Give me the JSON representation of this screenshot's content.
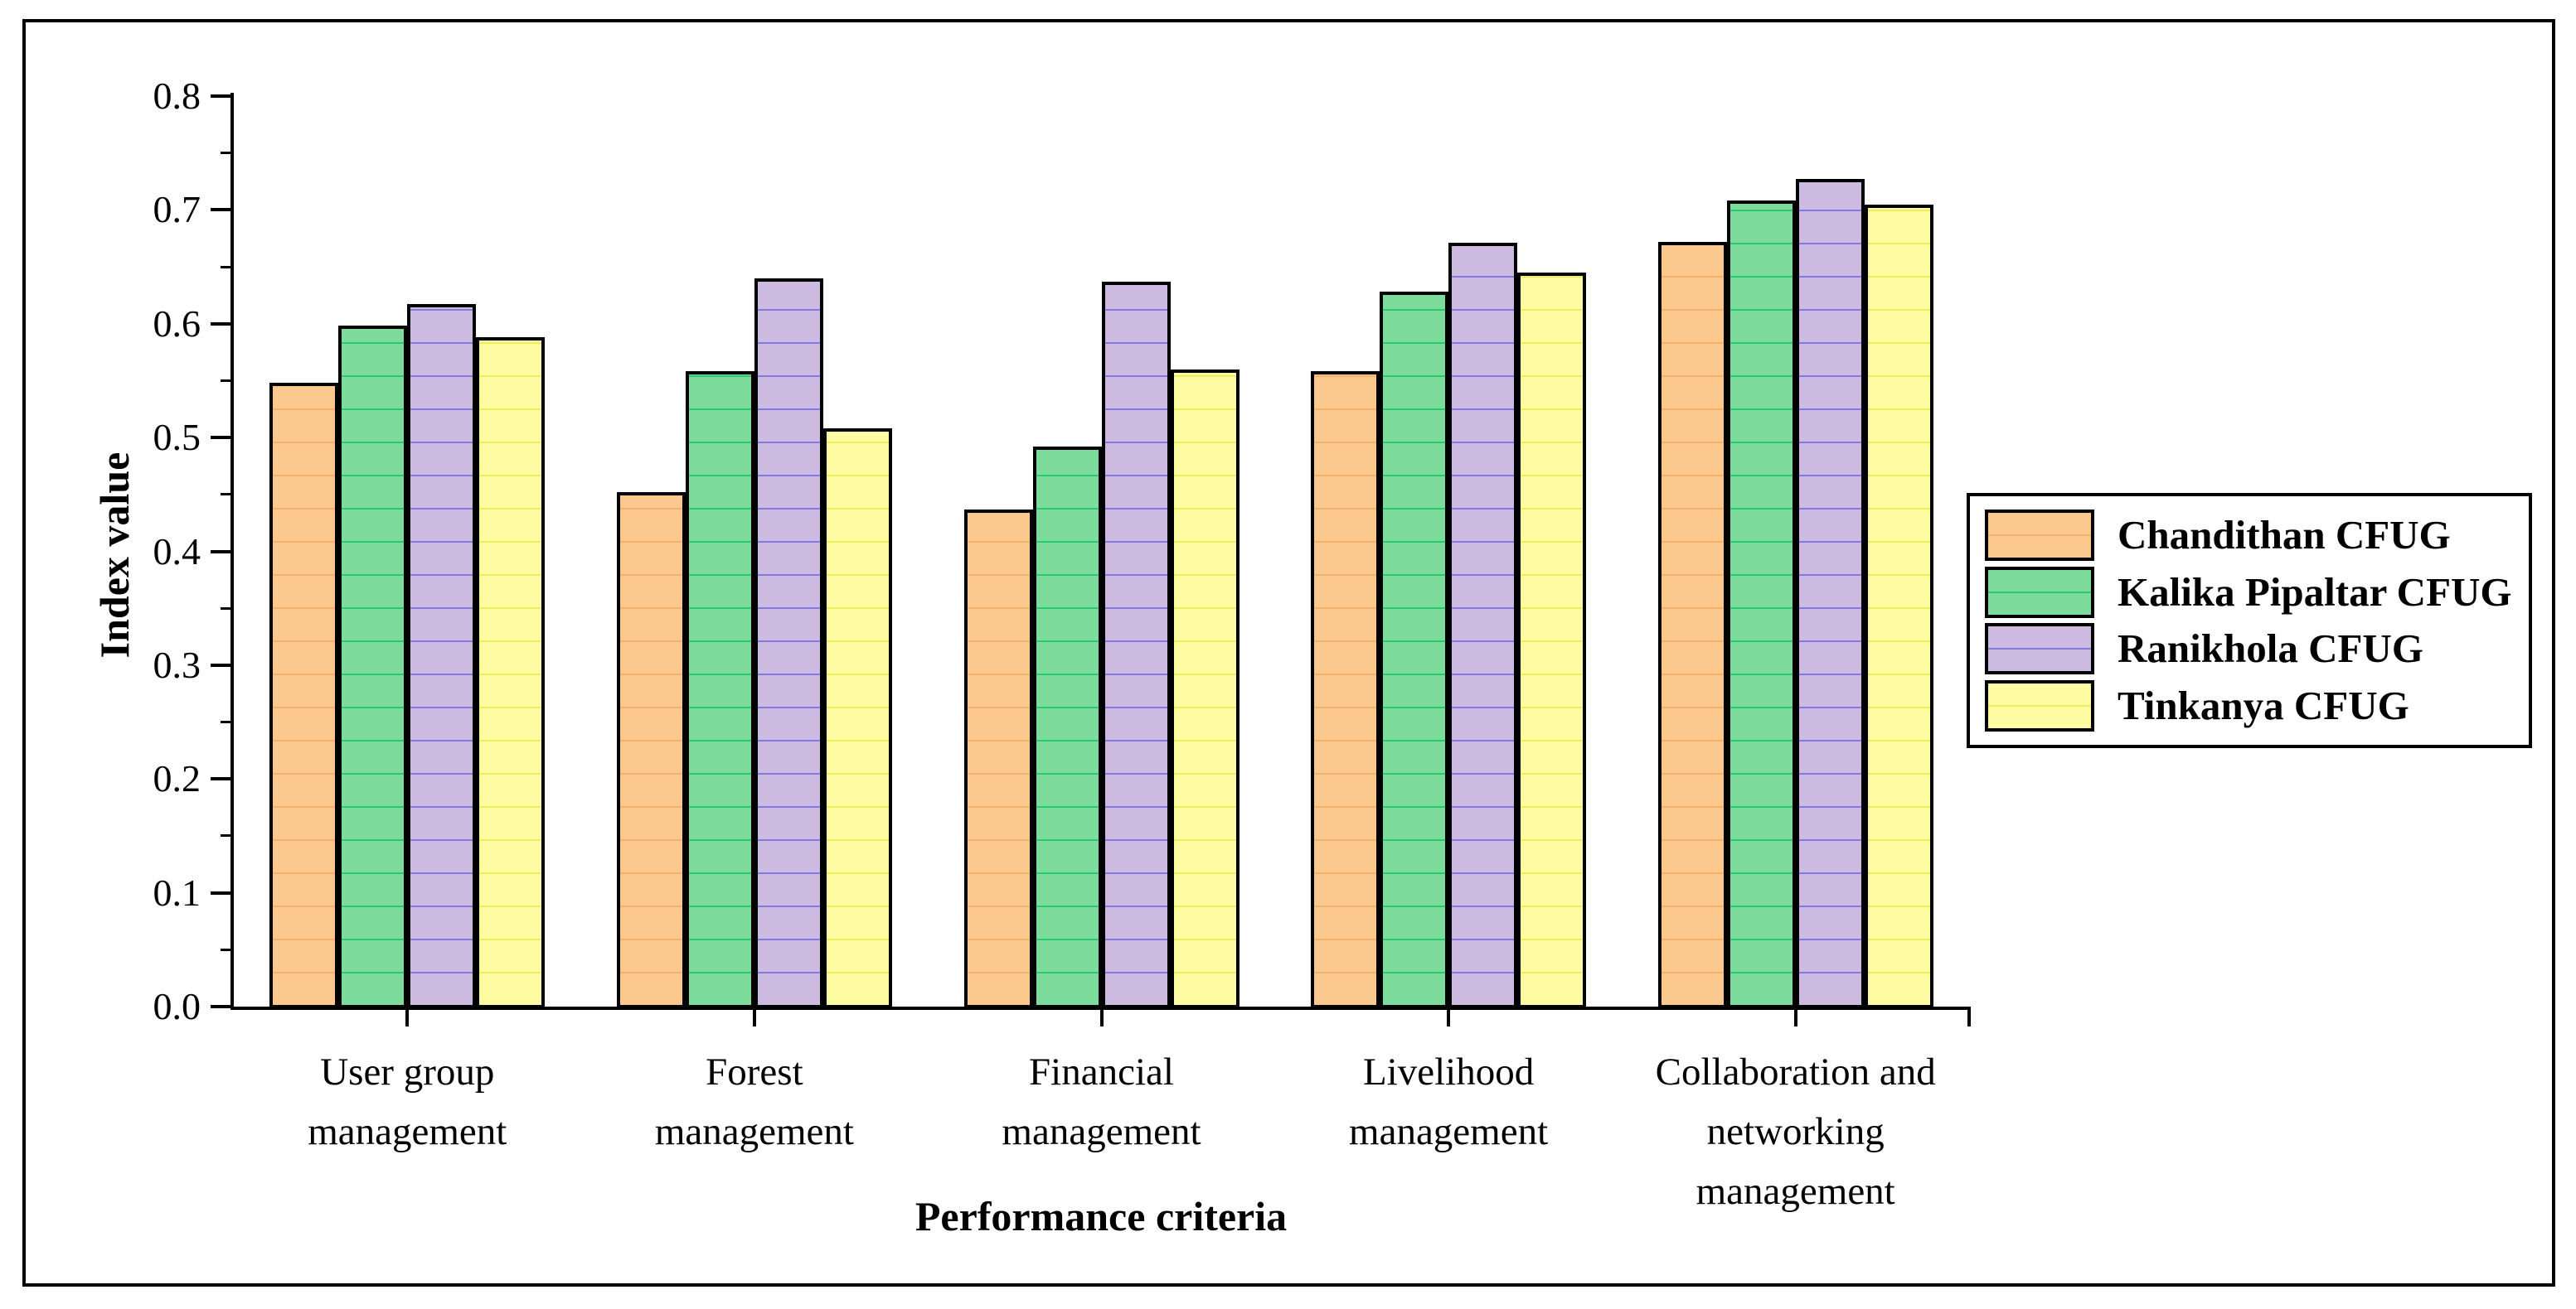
{
  "chart_data": {
    "type": "bar",
    "title": "",
    "ylabel": "Index value",
    "xlabel": "Performance criteria",
    "ylim": [
      0.0,
      0.8
    ],
    "ytick_major_step": 0.1,
    "ytick_minor_step": 0.05,
    "ytick_labels": [
      "0.0",
      "0.1",
      "0.2",
      "0.3",
      "0.4",
      "0.5",
      "0.6",
      "0.7",
      "0.8"
    ],
    "grid": false,
    "legend_position": "right",
    "categories": [
      "User group\nmanagement",
      "Forest\nmanagement",
      "Financial\nmanagement",
      "Livelihood\nmanagement",
      "Collaboration and\nnetworking\nmanagement"
    ],
    "series": [
      {
        "name": "Chandithan CFUG",
        "color": "#FBC98D",
        "stripe_color": "#F5B269",
        "values": [
          0.548,
          0.452,
          0.437,
          0.558,
          0.672
        ]
      },
      {
        "name": "Kalika Pipaltar CFUG",
        "color": "#7DDB9C",
        "stripe_color": "#2BC876",
        "values": [
          0.598,
          0.558,
          0.492,
          0.628,
          0.708
        ]
      },
      {
        "name": "Ranikhola CFUG",
        "color": "#CCBAE0",
        "stripe_color": "#8379DE",
        "values": [
          0.617,
          0.64,
          0.637,
          0.671,
          0.727
        ]
      },
      {
        "name": "Tinkanya CFUG",
        "color": "#FDFCA3",
        "stripe_color": "#F2EE59",
        "values": [
          0.588,
          0.508,
          0.56,
          0.645,
          0.705
        ]
      }
    ],
    "outline_color": "#000000",
    "background_color": "#FFFFFF"
  }
}
